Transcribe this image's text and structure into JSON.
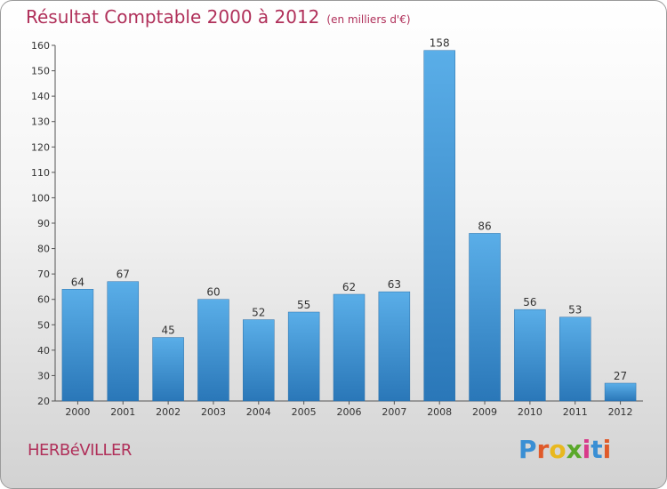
{
  "header": {
    "title": "Résultat Comptable 2000 à 2012",
    "subtitle": "(en milliers d'€)"
  },
  "footer": {
    "place": "HERBéVILLER",
    "logo_letters": [
      "P",
      "r",
      "o",
      "x",
      "i",
      "t",
      "i"
    ],
    "logo_colors": [
      "#3a8fd4",
      "#e05a2a",
      "#e8b81f",
      "#5aa82a",
      "#d83a8a",
      "#3a8fd4",
      "#e05a2a"
    ]
  },
  "chart_data": {
    "type": "bar",
    "title": "Résultat Comptable 2000 à 2012",
    "subtitle": "(en milliers d'€)",
    "categories": [
      "2000",
      "2001",
      "2002",
      "2003",
      "2004",
      "2005",
      "2006",
      "2007",
      "2008",
      "2009",
      "2010",
      "2011",
      "2012"
    ],
    "values": [
      64,
      67,
      45,
      60,
      52,
      55,
      62,
      63,
      158,
      86,
      56,
      53,
      27
    ],
    "ylim": [
      20,
      160
    ],
    "yticks": [
      20,
      30,
      40,
      50,
      60,
      70,
      80,
      90,
      100,
      110,
      120,
      130,
      140,
      150,
      160
    ],
    "grid": false,
    "bar_color": "#4a9fdf",
    "bar_color_dark": "#2a77b8"
  }
}
